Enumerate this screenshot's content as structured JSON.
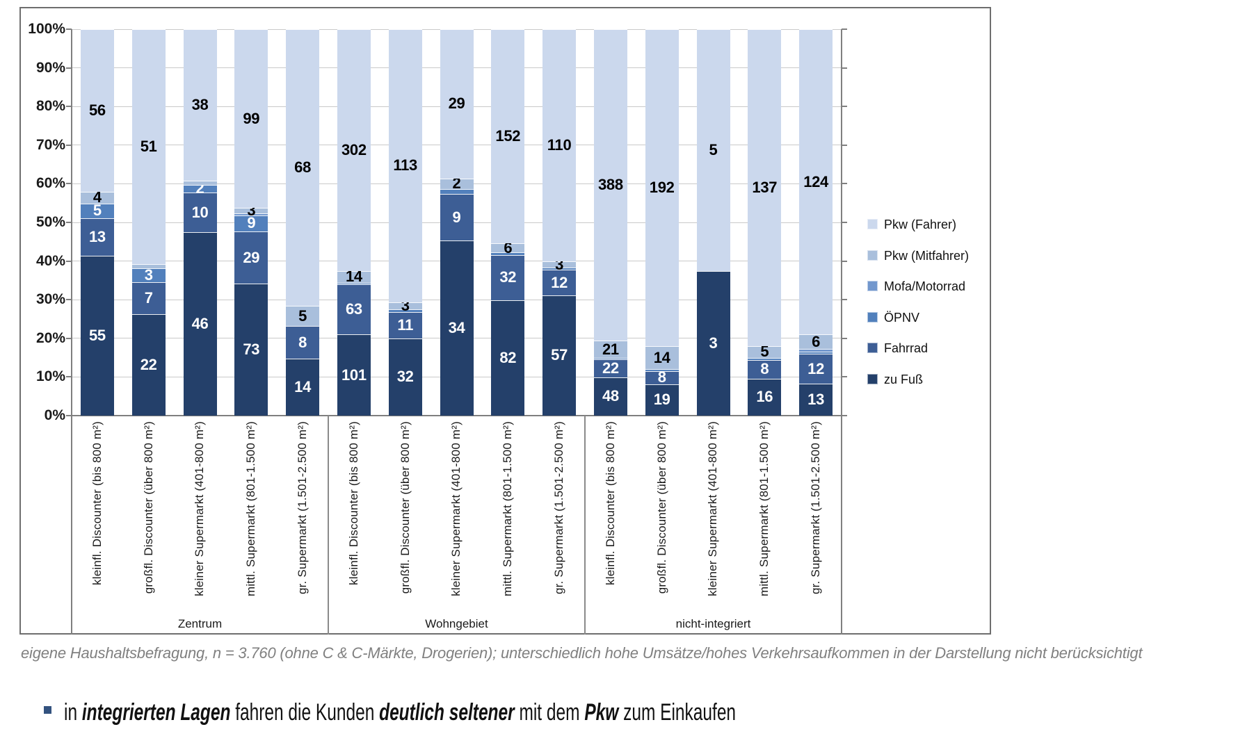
{
  "footnote": {
    "text": "eigene Haushaltsbefragung, n = 3.760 (ohne C & C-Märkte, Drogerien); unterschiedlich hohe Umsätze/hohes Verkehrsaufkommen in der Darstellung nicht berücksichtigt"
  },
  "bullet": {
    "marker_color": "#33527f",
    "parts": [
      {
        "text": "in ",
        "em": false
      },
      {
        "text": "integrierten Lagen",
        "em": true
      },
      {
        "text": " fahren die Kunden ",
        "em": false
      },
      {
        "text": "deutlich seltener",
        "em": true
      },
      {
        "text": " mit dem ",
        "em": false
      },
      {
        "text": "Pkw",
        "em": true
      },
      {
        "text": " zum Einkaufen",
        "em": false
      }
    ]
  },
  "chart_data": {
    "type": "bar",
    "variant": "100%-stacked-column",
    "title": "",
    "grid": true,
    "y_axis": {
      "range_percent": [
        0,
        100
      ],
      "ticks": [
        "0%",
        "10%",
        "20%",
        "30%",
        "40%",
        "50%",
        "60%",
        "70%",
        "80%",
        "90%",
        "100%"
      ]
    },
    "groups": [
      "Zentrum",
      "Wohngebiet",
      "nicht-integriert"
    ],
    "categories": [
      "kleinfl. Discounter (bis 800 m²)",
      "großfl. Discounter (über 800 m²)",
      "kleiner Supermarkt (401-800 m²)",
      "mittl. Supermarkt (801-1.500 m²)",
      "gr. Supermarkt (1.501-2.500 m²)"
    ],
    "series_bottom_to_top": [
      {
        "name": "zu Fuß",
        "color": "#24406a",
        "label_color": "#ffffff"
      },
      {
        "name": "Fahrrad",
        "color": "#3d5e95",
        "label_color": "#ffffff"
      },
      {
        "name": "ÖPNV",
        "color": "#5280bc",
        "label_color": "#ffffff"
      },
      {
        "name": "Mofa/Motorrad",
        "color": "#7297cd",
        "label_color": "#ffffff"
      },
      {
        "name": "Pkw (Mitfahrer)",
        "color": "#a9bfdc",
        "label_color": "#000000"
      },
      {
        "name": "Pkw (Fahrer)",
        "color": "#cbd8ed",
        "label_color": "#000000"
      }
    ],
    "legend": {
      "position": "right",
      "items_top_to_bottom": [
        "Pkw (Fahrer)",
        "Pkw (Mitfahrer)",
        "Mofa/Motorrad",
        "ÖPNV",
        "Fahrrad",
        "zu Fuß"
      ]
    },
    "bars": [
      {
        "group": "Zentrum",
        "category": "kleinfl. Discounter (bis 800 m²)",
        "values": [
          55,
          13,
          5,
          0,
          4,
          56
        ],
        "labels": [
          "55",
          "13",
          "5",
          null,
          "4",
          "56"
        ]
      },
      {
        "group": "Zentrum",
        "category": "großfl. Discounter (über 800 m²)",
        "values": [
          22,
          7,
          3,
          0,
          1,
          51
        ],
        "labels": [
          "22",
          "7",
          "3",
          null,
          null,
          "51"
        ]
      },
      {
        "group": "Zentrum",
        "category": "kleiner Supermarkt (401-800 m²)",
        "values": [
          46,
          10,
          2,
          0,
          1,
          38
        ],
        "labels": [
          "46",
          "10",
          "2",
          null,
          null,
          "38"
        ]
      },
      {
        "group": "Zentrum",
        "category": "mittl. Supermarkt (801-1.500 m²)",
        "values": [
          73,
          29,
          9,
          1,
          3,
          99
        ],
        "labels": [
          "73",
          "29",
          "9",
          null,
          "3",
          "99"
        ]
      },
      {
        "group": "Zentrum",
        "category": "gr. Supermarkt (1.501-2.500 m²)",
        "values": [
          14,
          8,
          0,
          0,
          5,
          68
        ],
        "labels": [
          "14",
          "8",
          null,
          null,
          "5",
          "68"
        ]
      },
      {
        "group": "Wohngebiet",
        "category": "kleinfl. Discounter (bis 800 m²)",
        "values": [
          101,
          63,
          2,
          0,
          14,
          302
        ],
        "labels": [
          "101",
          "63",
          null,
          null,
          "14",
          "302"
        ]
      },
      {
        "group": "Wohngebiet",
        "category": "großfl. Discounter (über 800 m²)",
        "values": [
          32,
          11,
          1,
          0,
          3,
          113
        ],
        "labels": [
          "32",
          "11",
          null,
          null,
          "3",
          "113"
        ]
      },
      {
        "group": "Wohngebiet",
        "category": "kleiner Supermarkt (401-800 m²)",
        "values": [
          34,
          9,
          1,
          0,
          2,
          29
        ],
        "labels": [
          "34",
          "9",
          null,
          null,
          "2",
          "29"
        ]
      },
      {
        "group": "Wohngebiet",
        "category": "mittl. Supermarkt (801-1.500 m²)",
        "values": [
          82,
          32,
          2,
          0,
          6,
          152
        ],
        "labels": [
          "82",
          "32",
          null,
          null,
          "6",
          "152"
        ]
      },
      {
        "group": "Wohngebiet",
        "category": "gr. Supermarkt (1.501-2.500 m²)",
        "values": [
          57,
          12,
          1,
          0,
          3,
          110
        ],
        "labels": [
          "57",
          "12",
          null,
          null,
          "3",
          "110"
        ]
      },
      {
        "group": "nicht-integriert",
        "category": "kleinfl. Discounter (bis 800 m²)",
        "values": [
          48,
          22,
          2,
          0,
          21,
          388
        ],
        "labels": [
          "48",
          "22",
          null,
          null,
          "21",
          "388"
        ]
      },
      {
        "group": "nicht-integriert",
        "category": "großfl. Discounter (über 800 m²)",
        "values": [
          19,
          8,
          1,
          0,
          14,
          192
        ],
        "labels": [
          "19",
          "8",
          null,
          null,
          "14",
          "192"
        ]
      },
      {
        "group": "nicht-integriert",
        "category": "kleiner Supermarkt (401-800 m²)",
        "values": [
          3,
          0,
          0,
          0,
          0,
          5
        ],
        "labels": [
          "3",
          null,
          null,
          null,
          null,
          "5"
        ]
      },
      {
        "group": "nicht-integriert",
        "category": "mittl. Supermarkt (801-1.500 m²)",
        "values": [
          16,
          8,
          1,
          0,
          5,
          137
        ],
        "labels": [
          "16",
          "8",
          null,
          null,
          "5",
          "137"
        ]
      },
      {
        "group": "nicht-integriert",
        "category": "gr. Supermarkt (1.501-2.500 m²)",
        "values": [
          13,
          12,
          1,
          1,
          6,
          124
        ],
        "labels": [
          "13",
          "12",
          null,
          null,
          "6",
          "124"
        ]
      }
    ]
  }
}
